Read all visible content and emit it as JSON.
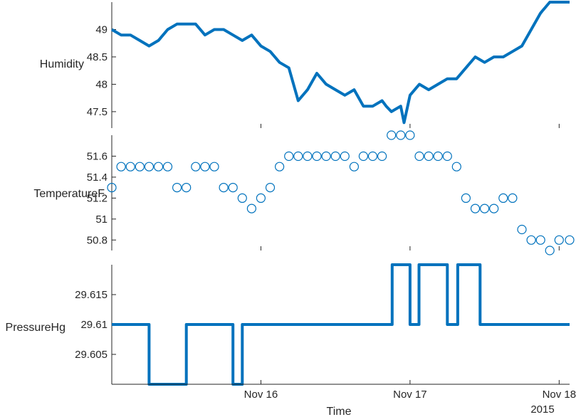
{
  "chart_data": {
    "type": "line",
    "color": "#0072BD",
    "x_axis": {
      "label": "Time",
      "ticks": [
        "Nov 16",
        "Nov 17",
        "Nov 18"
      ],
      "secondary_label": "2015",
      "tick_days": [
        16,
        17,
        18
      ],
      "xlim_days": [
        15.0,
        18.07
      ]
    },
    "panels": [
      {
        "ylabel": "Humidity",
        "style": "line",
        "ylim": [
          47.2,
          49.5
        ],
        "yticks": [
          47.5,
          48,
          48.5,
          49
        ],
        "ytick_labels": [
          "47.5",
          "48",
          "48.5",
          "49"
        ],
        "x_days": [
          15.0,
          15.0625,
          15.125,
          15.1875,
          15.25,
          15.3125,
          15.375,
          15.4375,
          15.5,
          15.5625,
          15.625,
          15.6875,
          15.75,
          15.8125,
          15.875,
          15.9375,
          16.0,
          16.0625,
          16.125,
          16.1875,
          16.25,
          16.3125,
          16.375,
          16.4375,
          16.5,
          16.5625,
          16.625,
          16.6875,
          16.75,
          16.8125,
          16.84,
          16.875,
          16.9375,
          16.96,
          17.0,
          17.0625,
          17.125,
          17.1875,
          17.25,
          17.3125,
          17.375,
          17.4375,
          17.5,
          17.5625,
          17.625,
          17.6875,
          17.75,
          17.8125,
          17.875,
          17.9375,
          18.0,
          18.07
        ],
        "values": [
          49.0,
          48.9,
          48.9,
          48.8,
          48.7,
          48.8,
          49.0,
          49.1,
          49.1,
          49.1,
          48.9,
          49.0,
          49.0,
          48.9,
          48.8,
          48.9,
          48.7,
          48.6,
          48.4,
          48.3,
          47.7,
          47.9,
          48.2,
          48.0,
          47.9,
          47.8,
          47.9,
          47.6,
          47.6,
          47.7,
          47.6,
          47.5,
          47.6,
          47.3,
          47.8,
          48.0,
          47.9,
          48.0,
          48.1,
          48.1,
          48.3,
          48.5,
          48.4,
          48.5,
          48.5,
          48.6,
          48.7,
          49.0,
          49.3,
          49.5,
          49.5,
          49.5
        ]
      },
      {
        "ylabel": "TemperatureF",
        "style": "markers",
        "ylim": [
          50.7,
          51.8
        ],
        "yticks": [
          50.8,
          51,
          51.2,
          51.4,
          51.6
        ],
        "ytick_labels": [
          "50.8",
          "51",
          "51.2",
          "51.4",
          "51.6"
        ],
        "x_days": [
          15.0,
          15.0625,
          15.125,
          15.1875,
          15.25,
          15.3125,
          15.375,
          15.4375,
          15.5,
          15.5625,
          15.625,
          15.6875,
          15.75,
          15.8125,
          15.875,
          15.9375,
          16.0,
          16.0625,
          16.125,
          16.1875,
          16.25,
          16.3125,
          16.375,
          16.4375,
          16.5,
          16.5625,
          16.625,
          16.6875,
          16.75,
          16.8125,
          16.875,
          16.9375,
          17.0,
          17.0625,
          17.125,
          17.1875,
          17.25,
          17.3125,
          17.375,
          17.4375,
          17.5,
          17.5625,
          17.625,
          17.6875,
          17.75,
          17.8125,
          17.875,
          17.9375,
          18.0,
          18.07
        ],
        "values": [
          51.3,
          51.5,
          51.5,
          51.5,
          51.5,
          51.5,
          51.5,
          51.3,
          51.3,
          51.5,
          51.5,
          51.5,
          51.3,
          51.3,
          51.2,
          51.1,
          51.2,
          51.3,
          51.5,
          51.6,
          51.6,
          51.6,
          51.6,
          51.6,
          51.6,
          51.6,
          51.5,
          51.6,
          51.6,
          51.6,
          51.8,
          51.8,
          51.8,
          51.6,
          51.6,
          51.6,
          51.6,
          51.5,
          51.2,
          51.1,
          51.1,
          51.1,
          51.2,
          51.2,
          50.9,
          50.8,
          50.8,
          50.7,
          50.8,
          50.8
        ]
      },
      {
        "ylabel": "PressureHg",
        "style": "stairs",
        "ylim": [
          29.6,
          29.62
        ],
        "yticks": [
          29.605,
          29.61,
          29.615
        ],
        "ytick_labels": [
          "29.605",
          "29.61",
          "29.615"
        ],
        "x_days": [
          15.0,
          15.25,
          15.5,
          15.8125,
          15.875,
          16.88,
          17.0,
          17.06,
          17.25,
          17.32,
          17.47,
          18.07
        ],
        "values": [
          29.61,
          29.6,
          29.61,
          29.6,
          29.61,
          29.62,
          29.61,
          29.62,
          29.61,
          29.62,
          29.61,
          29.61
        ]
      }
    ]
  }
}
